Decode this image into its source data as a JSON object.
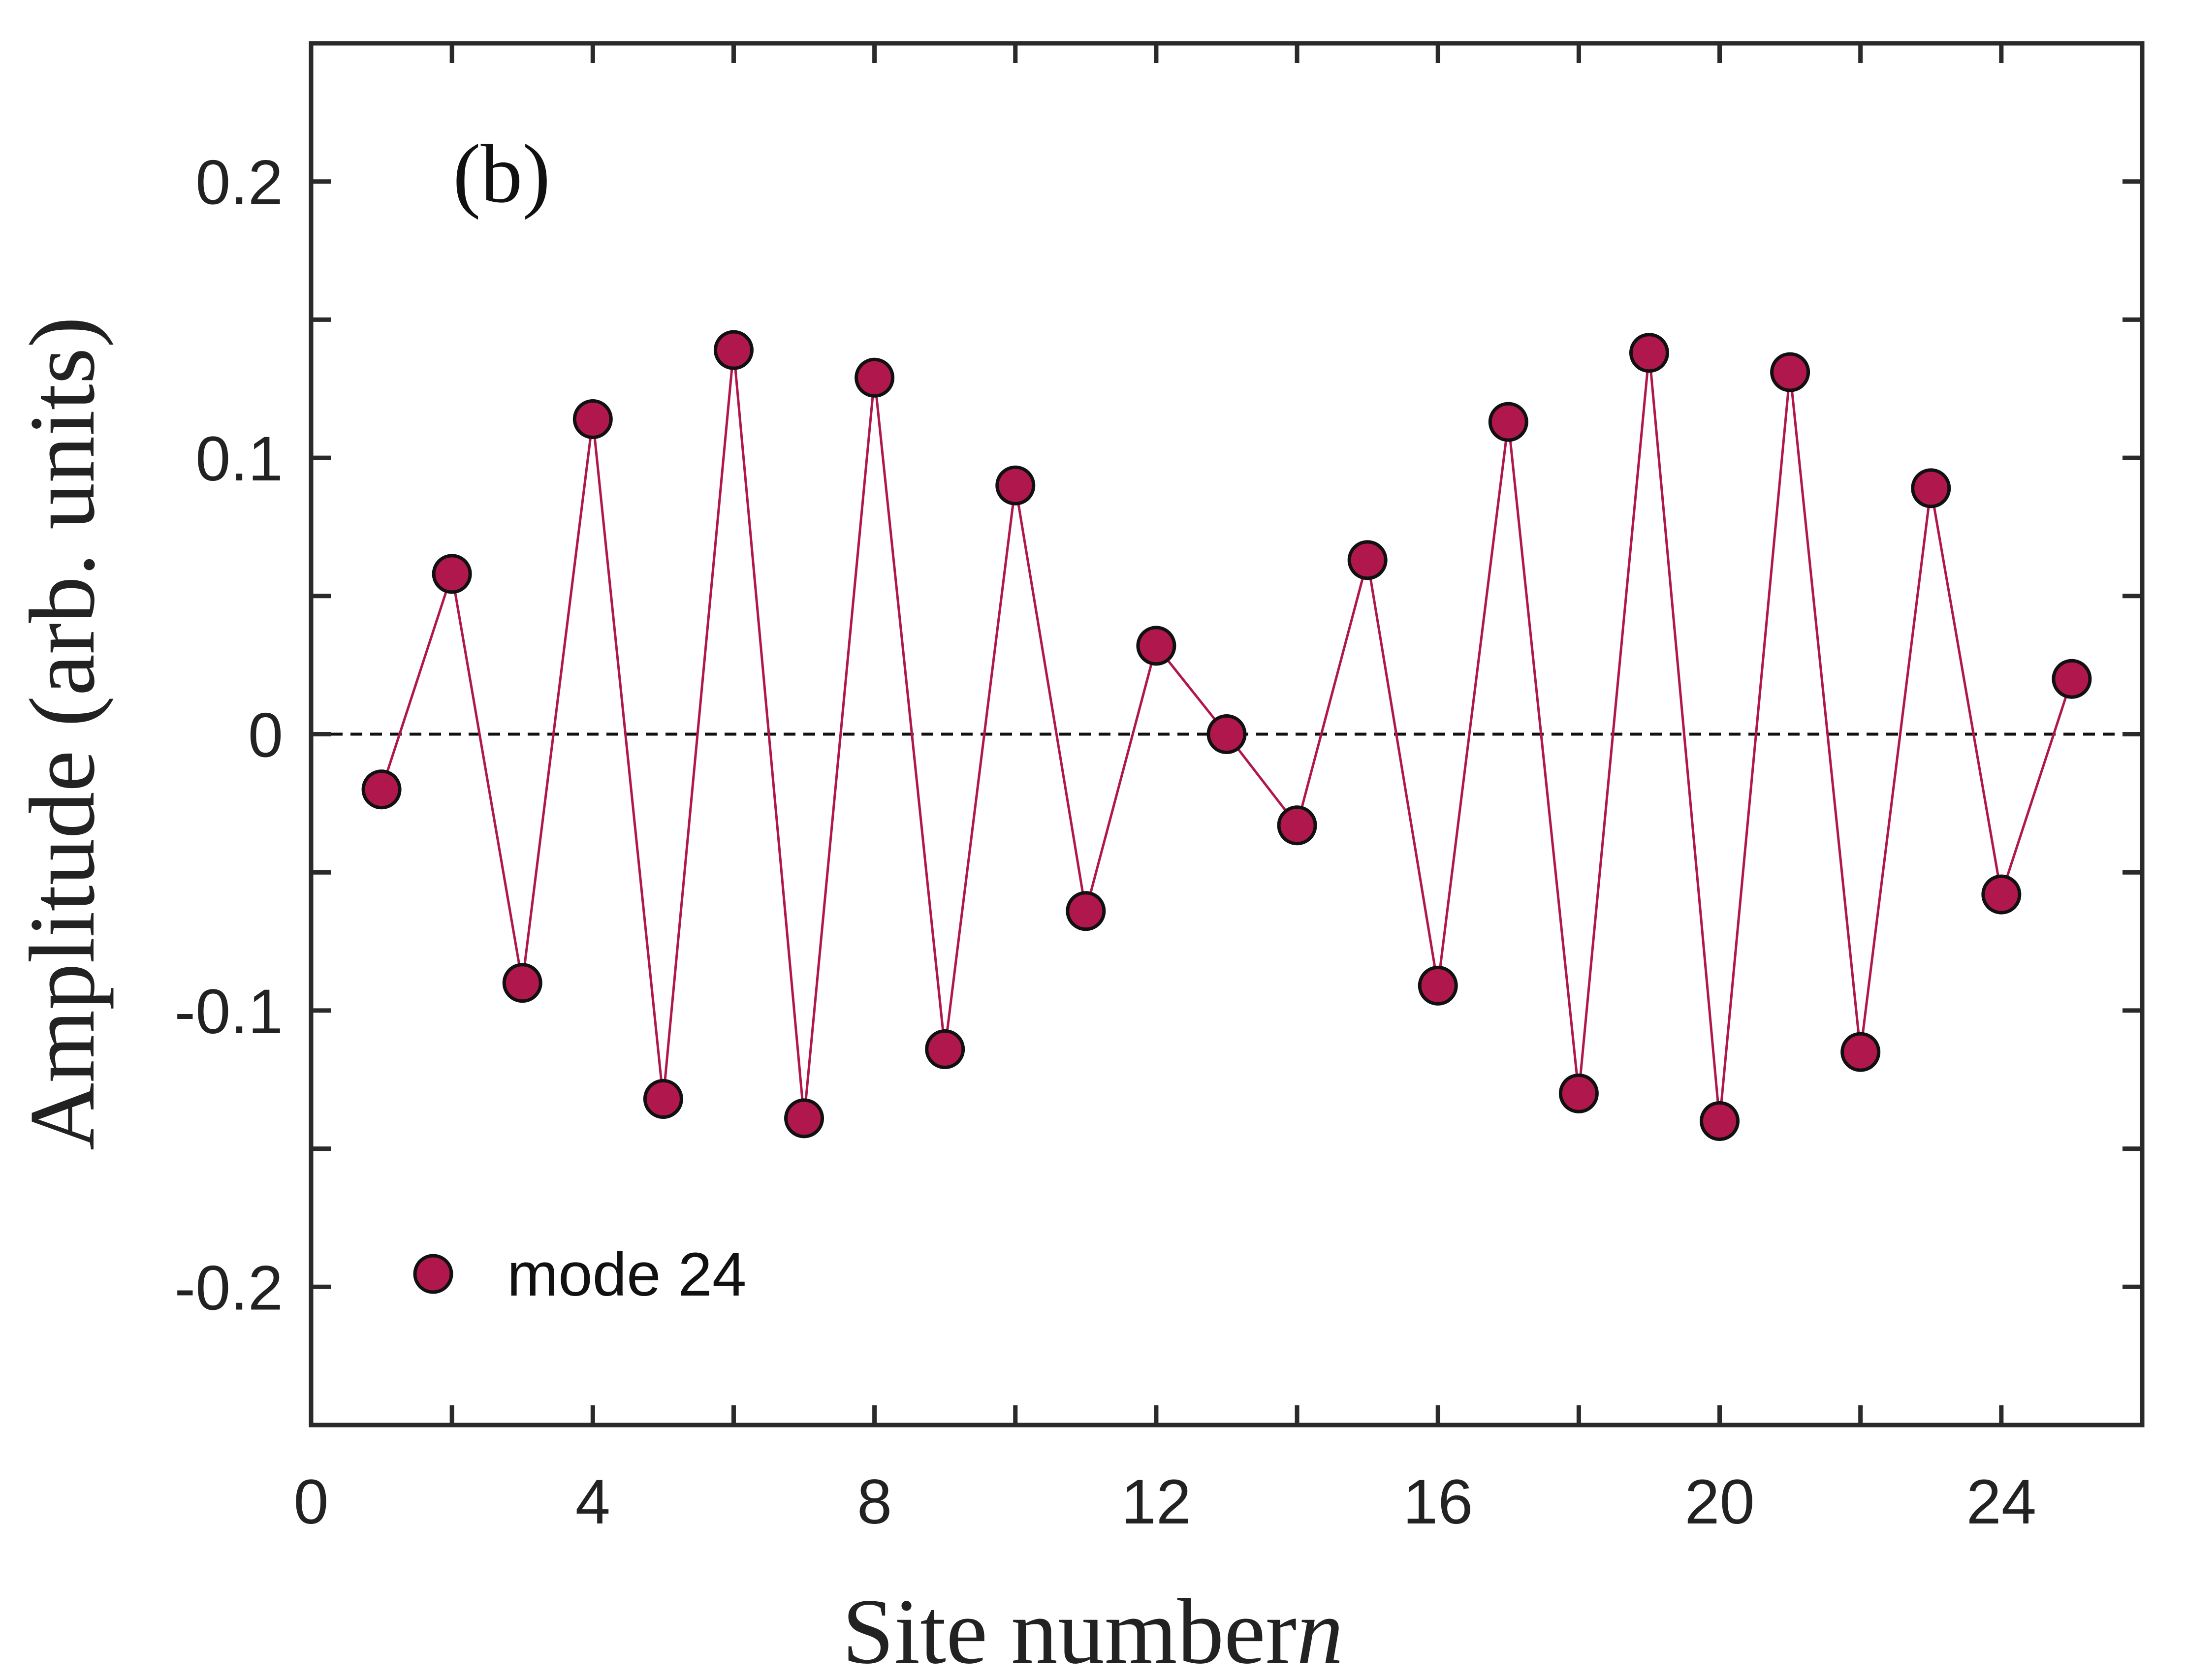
{
  "chart_data": {
    "type": "line",
    "panel_label": "(b)",
    "xlabel": "Site number",
    "xlabel_var": "n",
    "ylabel": "Amplitude (arb. units)",
    "xlim": [
      0,
      26
    ],
    "ylim": [
      -0.25,
      0.25
    ],
    "xticks": [
      0,
      4,
      8,
      12,
      16,
      20,
      24
    ],
    "xtick_labels": [
      "0",
      "4",
      "8",
      "12",
      "16",
      "20",
      "24"
    ],
    "yticks": [
      -0.2,
      -0.1,
      0,
      0.1,
      0.2
    ],
    "ytick_labels": [
      "-0.2",
      "-0.1",
      "0",
      "0.1",
      "0.2"
    ],
    "reference_line": {
      "y": 0,
      "style": "dashed"
    },
    "legend": {
      "position": "bottom-left",
      "entries": [
        "mode 24"
      ]
    },
    "series": [
      {
        "name": "mode 24",
        "color": "#B0174D",
        "x": [
          1,
          2,
          3,
          4,
          5,
          6,
          7,
          8,
          9,
          10,
          11,
          12,
          13,
          14,
          15,
          16,
          17,
          18,
          19,
          20,
          21,
          22,
          23,
          24,
          25
        ],
        "y": [
          -0.02,
          0.058,
          -0.09,
          0.114,
          -0.132,
          0.139,
          -0.139,
          0.129,
          -0.114,
          0.09,
          -0.064,
          0.032,
          0.0,
          -0.033,
          0.063,
          -0.091,
          0.113,
          -0.13,
          0.138,
          -0.14,
          0.131,
          -0.115,
          0.089,
          -0.058,
          0.02
        ]
      }
    ]
  }
}
